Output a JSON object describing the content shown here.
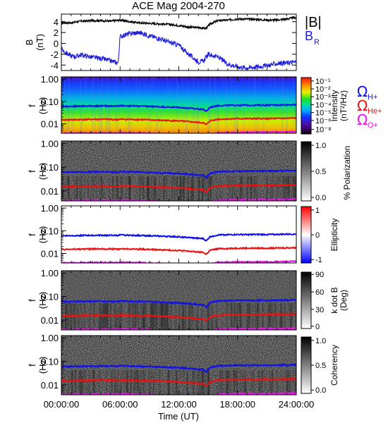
{
  "figure": {
    "title": "ACE Mag 2004-270",
    "xlabel": "Time (UT)",
    "xticks": [
      "00:00:00",
      "06:00:00",
      "12:00:00",
      "18:00:00",
      "24:00:00"
    ]
  },
  "legend": {
    "b_total": "|B|",
    "b_r_main": "B",
    "b_r_sub": "R",
    "omega_h_sub": "H+",
    "omega_he_sub": "He+",
    "omega_o_sub": "O+",
    "omega_symbol": "Ω"
  },
  "colors": {
    "b_total": "#000000",
    "b_r": "#1f1fdc",
    "omega_h": "#1010ee",
    "omega_he": "#ee1010",
    "omega_o": "#ee10ee"
  },
  "chart_data": [
    {
      "type": "line",
      "panel": "magnetic-field",
      "ylabel_main": "B",
      "ylabel_unit": "(nT)",
      "yticks": [
        "4",
        "2",
        "0",
        "-2",
        "-4"
      ],
      "ylim": [
        -5,
        5.4
      ],
      "xlim": [
        0,
        24
      ],
      "series": [
        {
          "name": "|B|",
          "x": [
            0,
            1,
            2,
            3,
            4,
            5,
            6,
            7,
            8,
            9,
            10,
            11,
            12,
            13,
            14,
            14.8,
            15.2,
            16,
            17,
            18,
            19,
            20,
            21,
            22,
            23,
            24
          ],
          "values": [
            3.8,
            3.8,
            4.1,
            4.2,
            4.2,
            4.1,
            4.3,
            4.0,
            3.8,
            3.7,
            3.6,
            3.5,
            3.3,
            3.0,
            2.9,
            2.8,
            3.6,
            4.2,
            4.3,
            4.5,
            4.5,
            4.4,
            4.3,
            4.3,
            4.5,
            4.8
          ]
        },
        {
          "name": "B_R",
          "x": [
            0,
            0.5,
            1,
            1.5,
            2,
            3,
            4,
            5,
            5.8,
            6,
            7,
            8,
            9,
            10,
            11,
            12,
            13,
            14,
            14.5,
            15,
            16,
            17,
            18,
            19,
            20,
            21,
            22,
            23,
            24
          ],
          "values": [
            -1.0,
            -1.8,
            -2.3,
            -2.4,
            -2.1,
            -2.5,
            -2.8,
            -3.2,
            -3.6,
            1.3,
            1.8,
            2.0,
            1.4,
            0.9,
            0.2,
            -0.3,
            -2.0,
            -3.4,
            -3.3,
            -2.0,
            -2.5,
            -3.8,
            -4.3,
            -4.5,
            -4.3,
            -4.1,
            -3.7,
            -3.6,
            -3.4
          ]
        }
      ]
    },
    {
      "type": "heatmap",
      "panel": "intensity",
      "ylabel_main": "f",
      "ylabel_unit": "(Hz)",
      "yticks": [
        "1.00",
        "0.10",
        "0.01"
      ],
      "colorbar_title_1": "Intensity",
      "colorbar_title_2": "(nT²/Hz)",
      "colorbar_ticks": [
        "10⁻¹",
        "10⁻²",
        "10⁻³",
        "10⁻⁴",
        "10⁻⁵",
        "10⁻⁶",
        "10⁻⁸"
      ]
    },
    {
      "type": "heatmap",
      "panel": "polarization",
      "ylabel_main": "f",
      "ylabel_unit": "(Hz)",
      "yticks": [
        "1.00",
        "0.10",
        "0.01"
      ],
      "colorbar_title": "% Polarization",
      "colorbar_ticks": [
        "1.0",
        "0.5",
        "0.0"
      ]
    },
    {
      "type": "heatmap",
      "panel": "ellipticity",
      "ylabel_main": "f",
      "ylabel_unit": "(Hz)",
      "yticks": [
        "1.00",
        "0.10",
        "0.01"
      ],
      "colorbar_title": "Ellipticity",
      "colorbar_ticks": [
        "1",
        "0",
        "-1"
      ]
    },
    {
      "type": "heatmap",
      "panel": "k-dot-b",
      "ylabel_main": "f",
      "ylabel_unit": "(Hz)",
      "yticks": [
        "1.00",
        "0.10",
        "0.01"
      ],
      "colorbar_title_1": "k dot B",
      "colorbar_title_2": "(Deg)",
      "colorbar_ticks": [
        "90",
        "60",
        "30",
        "0"
      ]
    },
    {
      "type": "heatmap",
      "panel": "coherency",
      "ylabel_main": "f",
      "ylabel_unit": "(Hz)",
      "yticks": [
        "1.00",
        "0.10",
        "0.01"
      ],
      "colorbar_title": "Coherency",
      "colorbar_ticks": [
        "1.0",
        "0.5",
        "0.0"
      ]
    }
  ],
  "gyrofrequency_lines": {
    "x": [
      0,
      2,
      4,
      5.8,
      6,
      8,
      10,
      12,
      13,
      14,
      14.5,
      14.8,
      15.2,
      16,
      18,
      20,
      22,
      24
    ],
    "h_plus": [
      0.06,
      0.062,
      0.063,
      0.062,
      0.065,
      0.062,
      0.058,
      0.054,
      0.05,
      0.046,
      0.045,
      0.035,
      0.055,
      0.065,
      0.068,
      0.068,
      0.069,
      0.072
    ],
    "he_plus": [
      0.015,
      0.0155,
      0.016,
      0.0155,
      0.016,
      0.0155,
      0.0145,
      0.0135,
      0.0125,
      0.0115,
      0.0112,
      0.009,
      0.0138,
      0.016,
      0.017,
      0.017,
      0.0172,
      0.018
    ],
    "o_plus": [
      0.0038,
      0.0039,
      0.004,
      0.0039,
      0.0041,
      0.0039,
      0.0036,
      0.0034,
      0.0031,
      0.0029,
      0.0028,
      0.0025,
      0.0034,
      0.004,
      0.0042,
      0.0042,
      0.0043,
      0.0045
    ]
  }
}
